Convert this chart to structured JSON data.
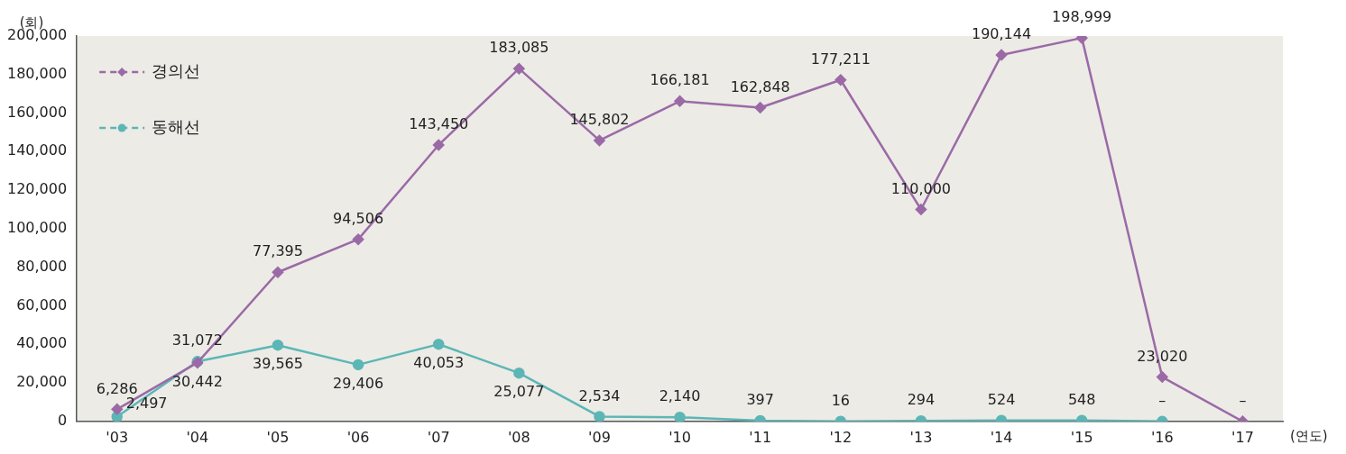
{
  "chart_data": {
    "type": "line",
    "ylabel": "(회)",
    "xlabel": "(연도)",
    "categories": [
      "'03",
      "'04",
      "'05",
      "'06",
      "'07",
      "'08",
      "'09",
      "'10",
      "'11",
      "'12",
      "'13",
      "'14",
      "'15",
      "'16",
      "'17"
    ],
    "series": [
      {
        "name": "경의선",
        "color": "#9b6aa6",
        "marker": "diamond",
        "values": [
          6286,
          30442,
          77395,
          94506,
          143450,
          183085,
          145802,
          166181,
          162848,
          177211,
          110000,
          190144,
          198999,
          23020,
          0
        ],
        "value_labels": [
          "6,286",
          "30,442",
          "77,395",
          "94,506",
          "143,450",
          "183,085",
          "145,802",
          "166,181",
          "162,848",
          "177,211",
          "110,000",
          "190,144",
          "198,999",
          "23,020",
          "–"
        ]
      },
      {
        "name": "동해선",
        "color": "#5cb6b6",
        "marker": "circle",
        "values": [
          2497,
          31072,
          39565,
          29406,
          40053,
          25077,
          2534,
          2140,
          397,
          16,
          294,
          524,
          548,
          0,
          null
        ],
        "value_labels": [
          "2,497",
          "31,072",
          "39,565",
          "29,406",
          "40,053",
          "25,077",
          "2,534",
          "2,140",
          "397",
          "16",
          "294",
          "524",
          "548",
          "–",
          null
        ]
      }
    ],
    "ylim": [
      0,
      200000
    ],
    "yticks": [
      0,
      {
        "value": 20000,
        "label": "20,000"
      },
      {
        "value": 40000,
        "label": "40,000"
      },
      {
        "value": 60000,
        "label": "60,000"
      },
      {
        "value": 80000,
        "label": "80,000"
      },
      {
        "value": 100000,
        "label": "100,000"
      },
      {
        "value": 120000,
        "label": "120,000"
      },
      {
        "value": 140000,
        "label": "140,000"
      },
      {
        "value": 160000,
        "label": "160,000"
      },
      {
        "value": 180000,
        "label": "180,000"
      },
      {
        "value": 200000,
        "label": "200,000"
      }
    ],
    "grid": false,
    "legend": "top left",
    "line_style": "solid"
  }
}
